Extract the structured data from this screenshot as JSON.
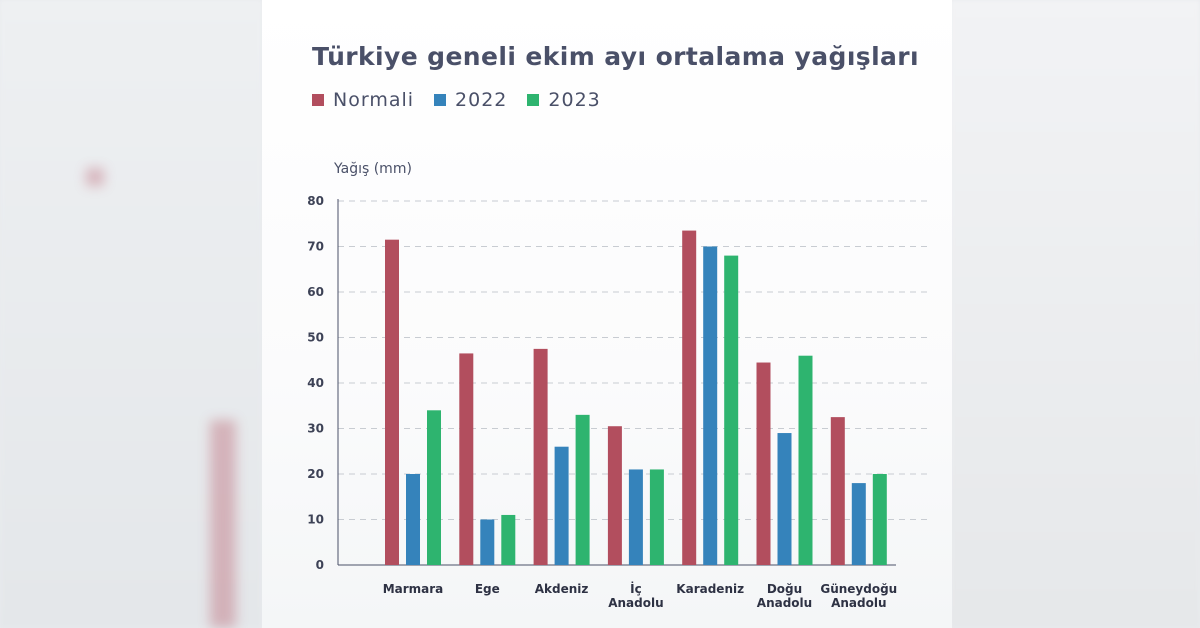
{
  "chart_data": {
    "type": "bar",
    "title": "Türkiye geneli ekim ayı ortalama yağışları",
    "ylabel": "Yağış (mm)",
    "xlabel": "",
    "ylim": [
      0,
      80
    ],
    "yticks": [
      0,
      10,
      20,
      30,
      40,
      50,
      60,
      70,
      80
    ],
    "grid": "horizontal dashed",
    "legend_position": "top-left",
    "categories": [
      [
        "Marmara"
      ],
      [
        "Ege"
      ],
      [
        "Akdeniz"
      ],
      [
        "İç",
        "Anadolu"
      ],
      [
        "Karadeniz"
      ],
      [
        "Doğu",
        "Anadolu"
      ],
      [
        "Güneydoğu",
        "Anadolu"
      ]
    ],
    "series": [
      {
        "name": "Normali",
        "color": "#b24e5e",
        "values": [
          71.5,
          46.5,
          47.5,
          30.5,
          73.5,
          44.5,
          32.5
        ]
      },
      {
        "name": "2022",
        "color": "#3583bb",
        "values": [
          20,
          10,
          26,
          21,
          70,
          29,
          18
        ]
      },
      {
        "name": "2023",
        "color": "#2eb46f",
        "values": [
          34,
          11,
          33,
          21,
          68,
          46,
          20
        ]
      }
    ]
  }
}
